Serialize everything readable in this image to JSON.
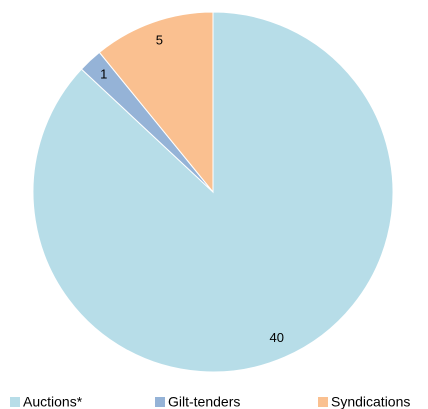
{
  "chart_data": {
    "type": "pie",
    "categories": [
      "Auctions*",
      "Gilt-tenders",
      "Syndications"
    ],
    "values": [
      40,
      1,
      5
    ],
    "colors": [
      "#b7dde8",
      "#95b3d7",
      "#fac090"
    ],
    "legend": "bottom"
  }
}
